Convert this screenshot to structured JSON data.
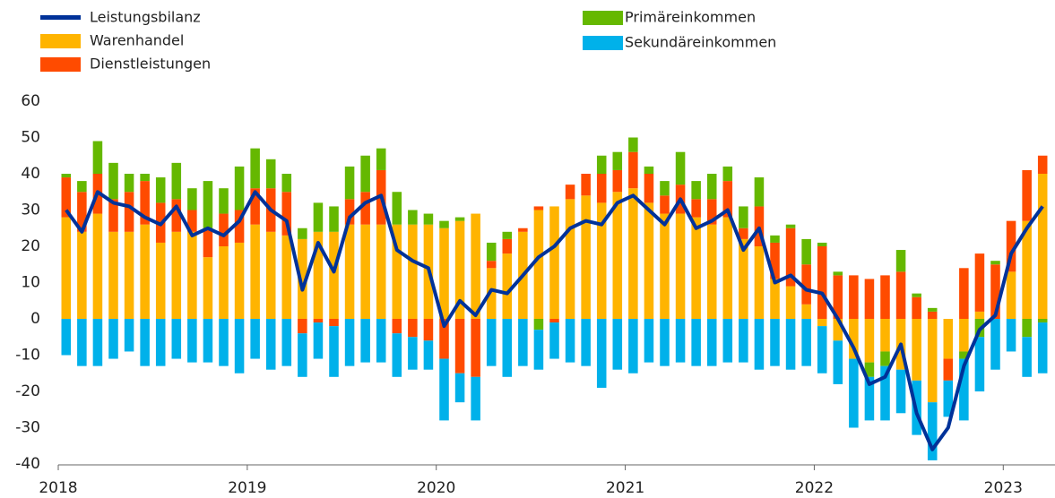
{
  "chart_data": {
    "type": "bar",
    "stacked": true,
    "categories": [
      "2018",
      null,
      null,
      null,
      null,
      null,
      null,
      null,
      null,
      null,
      null,
      null,
      "2019",
      null,
      null,
      null,
      null,
      null,
      null,
      null,
      null,
      null,
      null,
      null,
      "2020",
      null,
      null,
      null,
      null,
      null,
      null,
      null,
      null,
      null,
      null,
      null,
      "2021",
      null,
      null,
      null,
      null,
      null,
      null,
      null,
      null,
      null,
      null,
      null,
      "2022",
      null,
      null,
      null,
      null,
      null,
      null,
      null,
      null,
      null,
      null,
      null,
      "2023",
      null,
      null
    ],
    "series": [
      {
        "name": "Leistungsbilanz",
        "type": "line",
        "color": "#003299",
        "values": [
          30,
          24,
          35,
          32,
          31,
          28,
          26,
          31,
          23,
          25,
          23,
          27,
          35,
          30,
          27,
          8,
          21,
          13,
          28,
          32,
          34,
          19,
          16,
          14,
          -2,
          5,
          1,
          8,
          7,
          12,
          17,
          20,
          25,
          27,
          26,
          32,
          34,
          30,
          26,
          33,
          25,
          27,
          30,
          19,
          25,
          10,
          12,
          8,
          7,
          0,
          -8,
          -18,
          -16,
          -7,
          -26,
          -36,
          -30,
          -13,
          -3,
          1,
          18,
          25,
          31
        ]
      },
      {
        "name": "Warenhandel",
        "color": "#ffb400",
        "values": [
          28,
          24,
          29,
          24,
          24,
          26,
          21,
          24,
          24,
          17,
          20,
          21,
          26,
          24,
          23,
          22,
          24,
          24,
          26,
          26,
          26,
          26,
          26,
          26,
          25,
          27,
          29,
          14,
          18,
          24,
          30,
          31,
          33,
          34,
          32,
          35,
          36,
          32,
          29,
          29,
          28,
          26,
          28,
          22,
          20,
          11,
          9,
          4,
          -2,
          -6,
          -11,
          -12,
          -9,
          -14,
          -17,
          -23,
          -11,
          -9,
          2,
          0,
          13,
          27,
          40
        ]
      },
      {
        "name": "Dienstleistungen",
        "color": "#ff4b00",
        "values": [
          11,
          11,
          11,
          9,
          11,
          12,
          11,
          9,
          6,
          8,
          9,
          9,
          10,
          12,
          12,
          -4,
          -1,
          -2,
          7,
          9,
          15,
          -4,
          -5,
          -6,
          -11,
          -15,
          -16,
          2,
          4,
          1,
          1,
          -1,
          4,
          6,
          8,
          6,
          10,
          8,
          5,
          8,
          5,
          7,
          10,
          3,
          11,
          10,
          16,
          11,
          20,
          12,
          12,
          11,
          12,
          13,
          6,
          2,
          -6,
          14,
          16,
          15,
          14,
          14,
          5
        ]
      },
      {
        "name": "Primäreinkommen",
        "color": "#65b800",
        "values": [
          1,
          3,
          9,
          10,
          5,
          2,
          7,
          10,
          6,
          13,
          7,
          12,
          11,
          8,
          5,
          3,
          8,
          7,
          9,
          10,
          6,
          9,
          4,
          3,
          2,
          1,
          0,
          5,
          2,
          0,
          -3,
          0,
          0,
          0,
          5,
          5,
          4,
          2,
          4,
          9,
          5,
          7,
          4,
          6,
          8,
          2,
          1,
          7,
          1,
          1,
          0,
          -4,
          -4,
          6,
          1,
          1,
          0,
          -2,
          -5,
          1,
          0,
          -5,
          -1
        ]
      },
      {
        "name": "Sekundäreinkommen",
        "color": "#00b1ea",
        "values": [
          -10,
          -13,
          -13,
          -11,
          -9,
          -13,
          -13,
          -11,
          -12,
          -12,
          -13,
          -15,
          -11,
          -14,
          -13,
          -12,
          -10,
          -14,
          -13,
          -12,
          -12,
          -12,
          -9,
          -8,
          -17,
          -8,
          -12,
          -13,
          -16,
          -13,
          -11,
          -10,
          -12,
          -13,
          -19,
          -14,
          -15,
          -12,
          -13,
          -12,
          -13,
          -13,
          -12,
          -12,
          -14,
          -13,
          -14,
          -13,
          -13,
          -12,
          -19,
          -12,
          -15,
          -12,
          -15,
          -16,
          -10,
          -17,
          -15,
          -14,
          -9,
          -11,
          -14
        ]
      }
    ],
    "ylim": [
      -40,
      60
    ],
    "yticks": [
      -40,
      -30,
      -20,
      -10,
      0,
      10,
      20,
      30,
      40,
      50,
      60
    ]
  }
}
